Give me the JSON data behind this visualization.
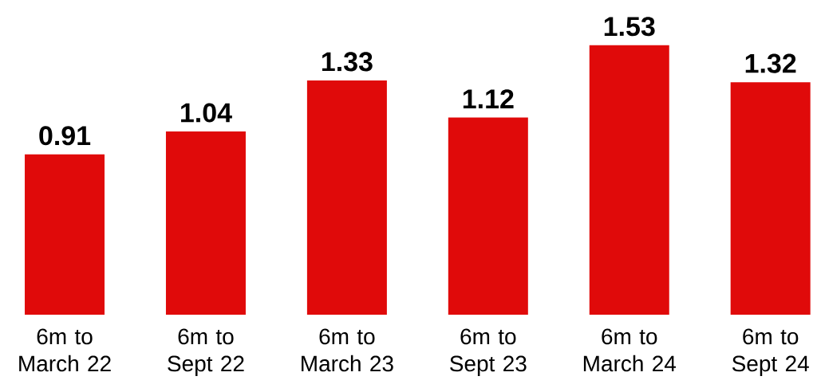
{
  "chart_data": {
    "type": "bar",
    "categories": [
      "6m to March 22",
      "6m to Sept 22",
      "6m to March 23",
      "6m to Sept 23",
      "6m to March 24",
      "6m to Sept 24"
    ],
    "values": [
      0.91,
      1.04,
      1.33,
      1.12,
      1.53,
      1.32
    ],
    "color": "#e00a0a",
    "data_labels": true
  }
}
